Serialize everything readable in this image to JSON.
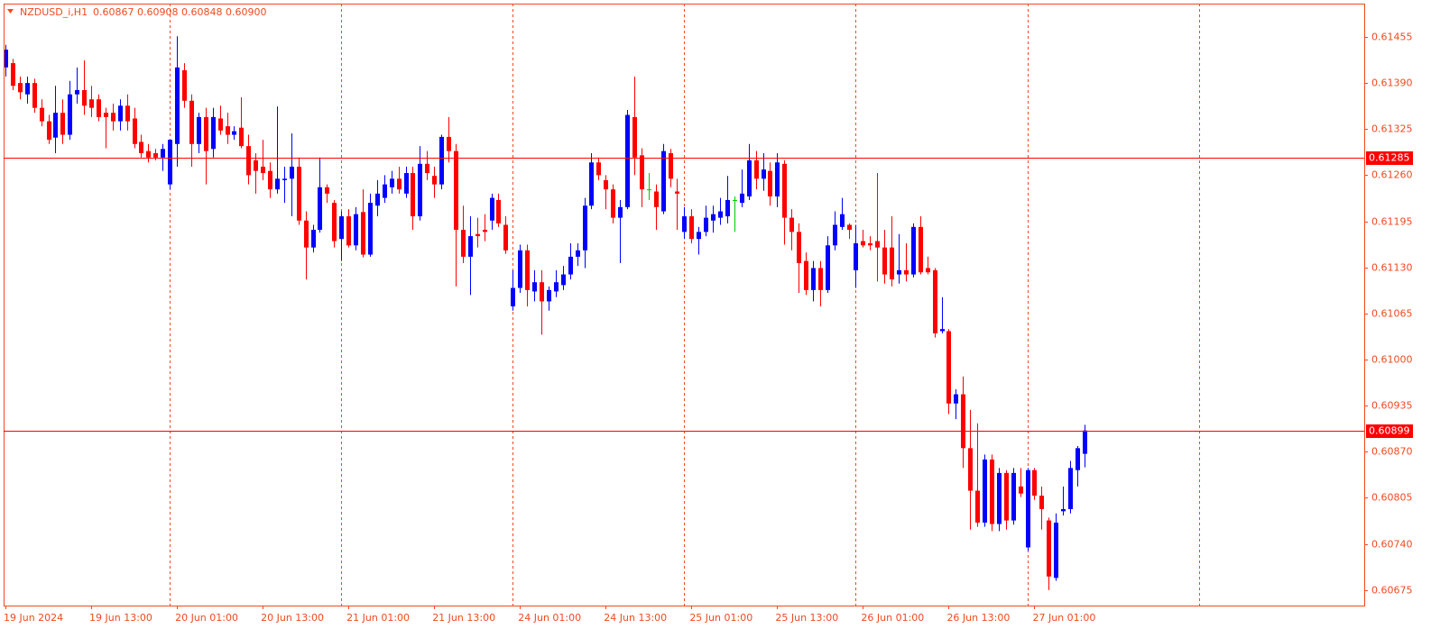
{
  "chart_data": {
    "type": "candlestick",
    "symbol": "NZDUSD_i,H1",
    "ohlc_text": "0.60867 0.60908 0.60848 0.60900",
    "categories": [
      "19 Jun 2024",
      null,
      null,
      null,
      null,
      null,
      null,
      null,
      null,
      null,
      null,
      null,
      "19 Jun 13:00",
      null,
      null,
      null,
      null,
      null,
      null,
      null,
      null,
      null,
      null,
      null,
      "20 Jun 01:00",
      null,
      null,
      null,
      null,
      null,
      null,
      null,
      null,
      null,
      null,
      null,
      "20 Jun 13:00",
      null,
      null,
      null,
      null,
      null,
      null,
      null,
      null,
      null,
      null,
      null,
      "21 Jun 01:00",
      null,
      null,
      null,
      null,
      null,
      null,
      null,
      null,
      null,
      null,
      null,
      "21 Jun 13:00",
      null,
      null,
      null,
      null,
      null,
      null,
      null,
      null,
      null,
      null,
      null,
      "24 Jun 01:00",
      null,
      null,
      null,
      null,
      null,
      null,
      null,
      null,
      null,
      null,
      null,
      "24 Jun 13:00",
      null,
      null,
      null,
      null,
      null,
      null,
      null,
      null,
      null,
      null,
      null,
      "25 Jun 01:00",
      null,
      null,
      null,
      null,
      null,
      null,
      null,
      null,
      null,
      null,
      null,
      "25 Jun 13:00",
      null,
      null,
      null,
      null,
      null,
      null,
      null,
      null,
      null,
      null,
      null,
      "26 Jun 01:00",
      null,
      null,
      null,
      null,
      null,
      null,
      null,
      null,
      null,
      null,
      null,
      "26 Jun 13:00",
      null,
      null,
      null,
      null,
      null,
      null,
      null,
      null,
      null,
      null,
      null,
      "27 Jun 01:00",
      null,
      null,
      null,
      null,
      null,
      null,
      null
    ],
    "ohlc": [
      [
        0.61412,
        0.61444,
        0.61399,
        0.61437
      ],
      [
        0.61418,
        0.61424,
        0.6138,
        0.61386
      ],
      [
        0.6139,
        0.61399,
        0.61367,
        0.61377
      ],
      [
        0.61374,
        0.61399,
        0.61361,
        0.6139
      ],
      [
        0.6139,
        0.61396,
        0.61348,
        0.61355
      ],
      [
        0.61355,
        0.61367,
        0.61329,
        0.61336
      ],
      [
        0.61336,
        0.61345,
        0.61304,
        0.6131
      ],
      [
        0.61313,
        0.61386,
        0.61291,
        0.61348
      ],
      [
        0.61348,
        0.61367,
        0.61304,
        0.61317
      ],
      [
        0.61317,
        0.61393,
        0.6131,
        0.61374
      ],
      [
        0.61374,
        0.61412,
        0.61361,
        0.6138
      ],
      [
        0.6138,
        0.61422,
        0.61345,
        0.61358
      ],
      [
        0.61367,
        0.61386,
        0.61342,
        0.61355
      ],
      [
        0.61367,
        0.61374,
        0.61336,
        0.61342
      ],
      [
        0.61348,
        0.61355,
        0.61298,
        0.61342
      ],
      [
        0.61348,
        0.61361,
        0.61323,
        0.61336
      ],
      [
        0.61336,
        0.61367,
        0.61323,
        0.61358
      ],
      [
        0.61358,
        0.61374,
        0.61323,
        0.61336
      ],
      [
        0.6134,
        0.61355,
        0.61298,
        0.61304
      ],
      [
        0.61307,
        0.61317,
        0.61285,
        0.61291
      ],
      [
        0.61294,
        0.61304,
        0.61278,
        0.61285
      ],
      [
        0.61291,
        0.61297,
        0.61281,
        0.61285
      ],
      [
        0.61285,
        0.61304,
        0.61266,
        0.61297
      ],
      [
        0.61247,
        0.6131,
        0.6124,
        0.6131
      ],
      [
        0.61304,
        0.61456,
        0.61272,
        0.61412
      ],
      [
        0.61408,
        0.61418,
        0.61355,
        0.61365
      ],
      [
        0.61365,
        0.61374,
        0.61272,
        0.61304
      ],
      [
        0.61304,
        0.61348,
        0.61291,
        0.61342
      ],
      [
        0.61342,
        0.61355,
        0.61247,
        0.61294
      ],
      [
        0.61297,
        0.61355,
        0.61285,
        0.61342
      ],
      [
        0.6134,
        0.61358,
        0.61317,
        0.61323
      ],
      [
        0.61329,
        0.61348,
        0.61304,
        0.61317
      ],
      [
        0.61317,
        0.61329,
        0.6131,
        0.61322
      ],
      [
        0.61327,
        0.6137,
        0.61298,
        0.61301
      ],
      [
        0.61301,
        0.61317,
        0.61247,
        0.6126
      ],
      [
        0.61281,
        0.61291,
        0.61234,
        0.61266
      ],
      [
        0.61272,
        0.6131,
        0.61253,
        0.61263
      ],
      [
        0.61266,
        0.61278,
        0.61228,
        0.6124
      ],
      [
        0.6124,
        0.61357,
        0.61234,
        0.61255
      ],
      [
        0.61253,
        0.61272,
        0.61221,
        0.61255
      ],
      [
        0.61255,
        0.61319,
        0.61202,
        0.61272
      ],
      [
        0.61272,
        0.61285,
        0.6119,
        0.61196
      ],
      [
        0.61196,
        0.61209,
        0.61113,
        0.61158
      ],
      [
        0.61158,
        0.6119,
        0.61151,
        0.61183
      ],
      [
        0.61183,
        0.61285,
        0.61179,
        0.61243
      ],
      [
        0.61243,
        0.61247,
        0.61221,
        0.61234
      ],
      [
        0.61221,
        0.61225,
        0.61158,
        0.61167
      ],
      [
        0.6117,
        0.61209,
        0.61139,
        0.61202
      ],
      [
        0.61202,
        0.61212,
        0.61158,
        0.61161
      ],
      [
        0.61161,
        0.61215,
        0.61154,
        0.61205
      ],
      [
        0.61208,
        0.6124,
        0.61144,
        0.61148
      ],
      [
        0.61148,
        0.61234,
        0.61145,
        0.61221
      ],
      [
        0.61217,
        0.61253,
        0.61202,
        0.61234
      ],
      [
        0.61228,
        0.6126,
        0.61221,
        0.61247
      ],
      [
        0.61243,
        0.61266,
        0.61234,
        0.61255
      ],
      [
        0.61255,
        0.61272,
        0.61234,
        0.6124
      ],
      [
        0.61234,
        0.61272,
        0.61228,
        0.61263
      ],
      [
        0.61263,
        0.61272,
        0.61183,
        0.61202
      ],
      [
        0.61202,
        0.61301,
        0.61196,
        0.61276
      ],
      [
        0.61276,
        0.61294,
        0.61253,
        0.61263
      ],
      [
        0.61259,
        0.61272,
        0.61228,
        0.61247
      ],
      [
        0.61247,
        0.61317,
        0.6124,
        0.61314
      ],
      [
        0.61314,
        0.61342,
        0.61278,
        0.61294
      ],
      [
        0.61294,
        0.61304,
        0.61103,
        0.61183
      ],
      [
        0.61183,
        0.61217,
        0.61136,
        0.61145
      ],
      [
        0.61145,
        0.61202,
        0.61091,
        0.61174
      ],
      [
        0.61177,
        0.612,
        0.61158,
        0.61174
      ],
      [
        0.61183,
        0.61205,
        0.61167,
        0.6118
      ],
      [
        0.61196,
        0.61234,
        0.61183,
        0.61228
      ],
      [
        0.61225,
        0.61234,
        0.61187,
        0.61192
      ],
      [
        0.6119,
        0.61202,
        0.61149,
        0.61154
      ],
      [
        0.61075,
        0.61126,
        0.61069,
        0.61101
      ],
      [
        0.61101,
        0.61162,
        0.61094,
        0.61154
      ],
      [
        0.61154,
        0.61162,
        0.61075,
        0.61098
      ],
      [
        0.61096,
        0.61126,
        0.61082,
        0.61109
      ],
      [
        0.61109,
        0.61126,
        0.61035,
        0.61082
      ],
      [
        0.61082,
        0.61103,
        0.61069,
        0.61098
      ],
      [
        0.61096,
        0.61126,
        0.61088,
        0.61109
      ],
      [
        0.61105,
        0.61132,
        0.61098,
        0.6112
      ],
      [
        0.6112,
        0.61164,
        0.61113,
        0.61145
      ],
      [
        0.61145,
        0.61164,
        0.61132,
        0.61154
      ],
      [
        0.61154,
        0.61228,
        0.61129,
        0.61217
      ],
      [
        0.61217,
        0.61291,
        0.61212,
        0.61278
      ],
      [
        0.61278,
        0.61285,
        0.61253,
        0.6126
      ],
      [
        0.61253,
        0.6126,
        0.61212,
        0.6124
      ],
      [
        0.6124,
        0.61247,
        0.61192,
        0.612
      ],
      [
        0.612,
        0.61225,
        0.61136,
        0.61215
      ],
      [
        0.61215,
        0.61352,
        0.61212,
        0.61345
      ],
      [
        0.61342,
        0.61399,
        0.6126,
        0.61285
      ],
      [
        0.61288,
        0.61298,
        0.61215,
        0.6124
      ],
      [
        0.6124,
        0.61263,
        0.61225,
        0.6124
      ],
      [
        0.61237,
        0.61247,
        0.61183,
        0.61215
      ],
      [
        0.61209,
        0.61304,
        0.61205,
        0.61294
      ],
      [
        0.61291,
        0.61297,
        0.61243,
        0.61255
      ],
      [
        0.61237,
        0.61255,
        0.61183,
        0.61234
      ],
      [
        0.6118,
        0.61215,
        0.6117,
        0.61202
      ],
      [
        0.61202,
        0.61212,
        0.61164,
        0.6117
      ],
      [
        0.6117,
        0.61187,
        0.61148,
        0.6118
      ],
      [
        0.6118,
        0.61217,
        0.61174,
        0.612
      ],
      [
        0.61196,
        0.61217,
        0.61179,
        0.61205
      ],
      [
        0.612,
        0.61228,
        0.6119,
        0.61209
      ],
      [
        0.61202,
        0.61259,
        0.61192,
        0.61225
      ],
      [
        0.61225,
        0.6123,
        0.6118,
        0.61225
      ],
      [
        0.61221,
        0.61268,
        0.61215,
        0.61234
      ],
      [
        0.6123,
        0.61304,
        0.61225,
        0.61281
      ],
      [
        0.61281,
        0.61294,
        0.6124,
        0.61255
      ],
      [
        0.61255,
        0.61291,
        0.61238,
        0.61268
      ],
      [
        0.61266,
        0.61278,
        0.61217,
        0.6123
      ],
      [
        0.6123,
        0.61291,
        0.61215,
        0.61278
      ],
      [
        0.61276,
        0.61281,
        0.61162,
        0.612
      ],
      [
        0.612,
        0.61212,
        0.61154,
        0.6118
      ],
      [
        0.6118,
        0.61192,
        0.61094,
        0.61136
      ],
      [
        0.61139,
        0.61151,
        0.61091,
        0.61098
      ],
      [
        0.61098,
        0.61139,
        0.61082,
        0.61129
      ],
      [
        0.61129,
        0.61139,
        0.61075,
        0.61098
      ],
      [
        0.61098,
        0.61174,
        0.61094,
        0.61161
      ],
      [
        0.61161,
        0.61209,
        0.61154,
        0.6119
      ],
      [
        0.61187,
        0.61228,
        0.61183,
        0.61205
      ],
      [
        0.6119,
        0.61192,
        0.6117,
        0.61183
      ],
      [
        0.61126,
        0.6119,
        0.61101,
        0.61164
      ],
      [
        0.61167,
        0.61183,
        0.61158,
        0.61161
      ],
      [
        0.61164,
        0.61174,
        0.61154,
        0.61161
      ],
      [
        0.61167,
        0.61263,
        0.6111,
        0.61158
      ],
      [
        0.61158,
        0.61183,
        0.61107,
        0.6112
      ],
      [
        0.61158,
        0.61202,
        0.61103,
        0.61113
      ],
      [
        0.6112,
        0.61177,
        0.61107,
        0.61126
      ],
      [
        0.61126,
        0.61164,
        0.6111,
        0.6112
      ],
      [
        0.6112,
        0.61192,
        0.61116,
        0.61187
      ],
      [
        0.61187,
        0.61202,
        0.6112,
        0.61123
      ],
      [
        0.61129,
        0.61145,
        0.6112,
        0.61123
      ],
      [
        0.61126,
        0.61129,
        0.61031,
        0.61037
      ],
      [
        0.6104,
        0.61088,
        0.61037,
        0.61043
      ],
      [
        0.6104,
        0.61043,
        0.60923,
        0.60938
      ],
      [
        0.60938,
        0.60958,
        0.60916,
        0.60951
      ],
      [
        0.60951,
        0.60976,
        0.60847,
        0.60875
      ],
      [
        0.60875,
        0.60929,
        0.6076,
        0.60815
      ],
      [
        0.60815,
        0.6091,
        0.60764,
        0.6077
      ],
      [
        0.6077,
        0.60866,
        0.60764,
        0.60859
      ],
      [
        0.60859,
        0.60866,
        0.60758,
        0.60768
      ],
      [
        0.60768,
        0.60847,
        0.60758,
        0.6084
      ],
      [
        0.6084,
        0.60844,
        0.6076,
        0.60773
      ],
      [
        0.60773,
        0.60847,
        0.60767,
        0.6084
      ],
      [
        0.60821,
        0.60847,
        0.60806,
        0.60811
      ],
      [
        0.60735,
        0.60847,
        0.6073,
        0.60844
      ],
      [
        0.60844,
        0.60847,
        0.60802,
        0.60808
      ],
      [
        0.60808,
        0.60821,
        0.6076,
        0.60789
      ],
      [
        0.60773,
        0.60777,
        0.60675,
        0.60694
      ],
      [
        0.60692,
        0.60783,
        0.60688,
        0.6077
      ],
      [
        0.60786,
        0.60821,
        0.6078,
        0.60789
      ],
      [
        0.60789,
        0.60857,
        0.60783,
        0.60847
      ],
      [
        0.60844,
        0.60878,
        0.60821,
        0.60875
      ],
      [
        0.60867,
        0.60908,
        0.60848,
        0.609
      ]
    ],
    "up_color": "#0000ff",
    "down_color": "#ff0000",
    "doji_color": "#00c800",
    "ylim": [
      0.60653,
      0.61502
    ],
    "yticks": [
      0.61455,
      {
        "value": 0.6139,
        "label": "0.61390"
      },
      0.61325,
      {
        "value": 0.6126,
        "label": "0.61260"
      },
      0.61195,
      {
        "value": 0.6113,
        "label": "0.61130"
      },
      0.61065,
      {
        "value": 0.61,
        "label": "0.61000"
      },
      0.60935,
      {
        "value": 0.6087,
        "label": "0.60870"
      },
      0.60805,
      {
        "value": 0.6074,
        "label": "0.60740"
      },
      0.60675
    ],
    "hlines": [
      0.61285,
      0.60899
    ],
    "hline_color": "#ff0000"
  }
}
